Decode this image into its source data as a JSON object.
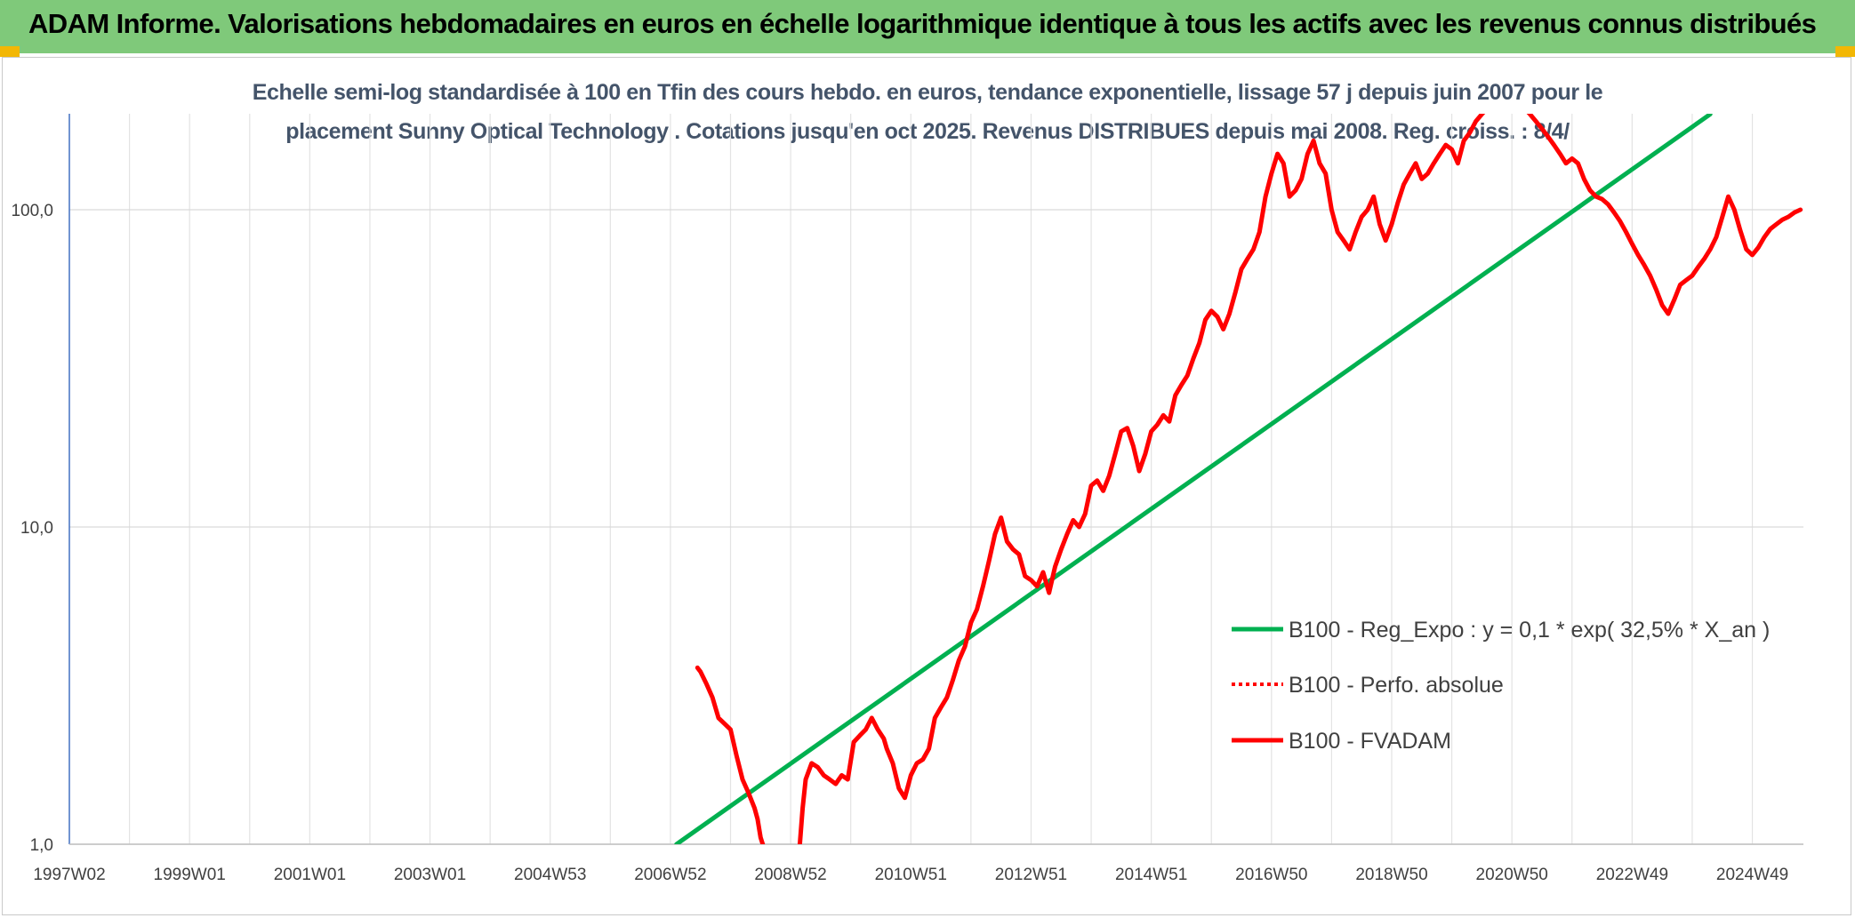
{
  "banner": {
    "title": "ADAM Informe. Valorisations hebdomadaires en euros en échelle logarithmique identique à tous les actifs avec les revenus connus distribués",
    "background": "#7fc97a",
    "corner_color": "#f2b705"
  },
  "chart_data": {
    "type": "line",
    "title_line1": "Echelle semi-log standardisée à 100 en Tfin des cours hebdo. en euros, tendance exponentielle, lissage 57 j depuis juin 2007 pour le",
    "title_line2": "placement Sunny Optical Technology . Cotations jusqu'en oct 2025. Revenus DISTRIBUES depuis mai 2008. Reg. croiss. : 8/4/",
    "y_scale": "log",
    "ylim": [
      1,
      200
    ],
    "xlim": [
      1997.0,
      2025.85
    ],
    "y_ticks": [
      {
        "value": 1,
        "label": "1,0"
      },
      {
        "value": 10,
        "label": "10,0"
      },
      {
        "value": 100,
        "label": "100,0"
      }
    ],
    "x_ticks": [
      {
        "value": 1997.0,
        "label": "1997W02"
      },
      {
        "value": 1999.0,
        "label": "1999W01"
      },
      {
        "value": 2001.0,
        "label": "2001W01"
      },
      {
        "value": 2003.0,
        "label": "2003W01"
      },
      {
        "value": 2005.0,
        "label": "2004W53"
      },
      {
        "value": 2007.0,
        "label": "2006W52"
      },
      {
        "value": 2009.0,
        "label": "2008W52"
      },
      {
        "value": 2011.0,
        "label": "2010W51"
      },
      {
        "value": 2013.0,
        "label": "2012W51"
      },
      {
        "value": 2015.0,
        "label": "2014W51"
      },
      {
        "value": 2017.0,
        "label": "2016W50"
      },
      {
        "value": 2019.0,
        "label": "2018W50"
      },
      {
        "value": 2021.0,
        "label": "2020W50"
      },
      {
        "value": 2023.0,
        "label": "2022W49"
      },
      {
        "value": 2025.0,
        "label": "2024W49"
      }
    ],
    "grid": true,
    "legend_position": "right-lower",
    "series": [
      {
        "name": "B100 - Reg_Expo : y = 0,1 * exp( 32,5% *  X_an )",
        "color": "#00b050",
        "style": "solid",
        "x": [
          2007.1,
          2024.3
        ],
        "y": [
          1.0,
          200
        ]
      },
      {
        "name": "B100 - Perfo. absolue",
        "color": "#ff0000",
        "style": "dotted",
        "x": [],
        "y": []
      },
      {
        "name": "B100 - FVADAM",
        "color": "#ff0000",
        "style": "solid",
        "x": [
          2007.45,
          2007.5,
          2007.6,
          2007.7,
          2007.8,
          2007.9,
          2008.0,
          2008.1,
          2008.2,
          2008.3,
          2008.4,
          2008.45,
          2008.5,
          2008.55,
          2009.15,
          2009.2,
          2009.25,
          2009.35,
          2009.45,
          2009.55,
          2009.65,
          2009.75,
          2009.85,
          2009.95,
          2010.05,
          2010.15,
          2010.25,
          2010.35,
          2010.45,
          2010.55,
          2010.6,
          2010.7,
          2010.8,
          2010.9,
          2011.0,
          2011.1,
          2011.2,
          2011.3,
          2011.4,
          2011.5,
          2011.6,
          2011.7,
          2011.8,
          2011.9,
          2012.0,
          2012.1,
          2012.2,
          2012.3,
          2012.4,
          2012.5,
          2012.6,
          2012.7,
          2012.8,
          2012.9,
          2013.0,
          2013.1,
          2013.2,
          2013.3,
          2013.4,
          2013.5,
          2013.6,
          2013.7,
          2013.8,
          2013.9,
          2014.0,
          2014.1,
          2014.2,
          2014.3,
          2014.4,
          2014.5,
          2014.6,
          2014.7,
          2014.8,
          2014.9,
          2015.0,
          2015.1,
          2015.2,
          2015.3,
          2015.4,
          2015.5,
          2015.6,
          2015.7,
          2015.8,
          2015.9,
          2016.0,
          2016.1,
          2016.2,
          2016.3,
          2016.4,
          2016.5,
          2016.6,
          2016.7,
          2016.8,
          2016.9,
          2017.0,
          2017.1,
          2017.2,
          2017.3,
          2017.4,
          2017.5,
          2017.6,
          2017.7,
          2017.8,
          2017.9,
          2018.0,
          2018.1,
          2018.2,
          2018.3,
          2018.4,
          2018.5,
          2018.6,
          2018.7,
          2018.8,
          2018.9,
          2019.0,
          2019.1,
          2019.2,
          2019.3,
          2019.4,
          2019.5,
          2019.6,
          2019.7,
          2019.8,
          2019.9,
          2020.0,
          2020.1,
          2020.2,
          2020.3,
          2020.4,
          2020.5,
          2020.6,
          2020.7,
          2020.8,
          2020.9,
          2021.0,
          2021.1,
          2021.2,
          2021.3,
          2021.4,
          2021.5,
          2021.6,
          2021.7,
          2021.8,
          2021.9,
          2022.0,
          2022.1,
          2022.2,
          2022.3,
          2022.4,
          2022.5,
          2022.6,
          2022.7,
          2022.8,
          2022.9,
          2023.0,
          2023.1,
          2023.2,
          2023.3,
          2023.4,
          2023.5,
          2023.6,
          2023.7,
          2023.8,
          2023.9,
          2024.0,
          2024.1,
          2024.2,
          2024.3,
          2024.4,
          2024.5,
          2024.6,
          2024.7,
          2024.8,
          2024.9,
          2025.0,
          2025.1,
          2025.2,
          2025.3,
          2025.4,
          2025.5,
          2025.6,
          2025.7,
          2025.8
        ],
        "y": [
          3.6,
          3.5,
          3.2,
          2.9,
          2.5,
          2.4,
          2.3,
          1.9,
          1.6,
          1.45,
          1.3,
          1.2,
          1.05,
          0.98,
          0.98,
          1.3,
          1.6,
          1.8,
          1.75,
          1.65,
          1.6,
          1.55,
          1.65,
          1.6,
          2.1,
          2.2,
          2.3,
          2.5,
          2.3,
          2.15,
          2.0,
          1.8,
          1.5,
          1.4,
          1.65,
          1.8,
          1.85,
          2.0,
          2.5,
          2.7,
          2.9,
          3.3,
          3.8,
          4.2,
          5.0,
          5.5,
          6.5,
          7.8,
          9.5,
          10.7,
          9.0,
          8.5,
          8.2,
          7.0,
          6.8,
          6.5,
          7.2,
          6.2,
          7.5,
          8.5,
          9.5,
          10.5,
          10.0,
          11.0,
          13.5,
          14.0,
          13.0,
          14.5,
          17.0,
          20.0,
          20.5,
          18.0,
          15.0,
          17.0,
          20.0,
          21.0,
          22.5,
          21.5,
          26.0,
          28.0,
          30.0,
          34.0,
          38.0,
          45.0,
          48.0,
          46.0,
          42.0,
          47.0,
          55.0,
          65.0,
          70.0,
          75.0,
          85.0,
          110.0,
          130.0,
          150.0,
          140.0,
          110.0,
          115.0,
          125.0,
          150.0,
          165.0,
          140.0,
          130.0,
          100.0,
          85.0,
          80.0,
          75.0,
          85.0,
          95.0,
          100.0,
          110.0,
          90.0,
          80.0,
          90.0,
          105.0,
          120.0,
          130.0,
          140.0,
          125.0,
          130.0,
          140.0,
          150.0,
          160.0,
          155.0,
          140.0,
          165.0,
          175.0,
          190.0,
          200.0,
          210.0,
          215.0,
          220.0,
          225.0,
          230.0,
          220.0,
          210.0,
          200.0,
          190.0,
          180.0,
          170.0,
          160.0,
          150.0,
          140.0,
          145.0,
          140.0,
          125.0,
          115.0,
          110.0,
          108.0,
          104.0,
          98.0,
          92.0,
          85.0,
          78.0,
          72.0,
          67.0,
          62.0,
          56.0,
          50.0,
          47.0,
          52.0,
          58.0,
          60.0,
          62.0,
          66.0,
          70.0,
          75.0,
          82.0,
          95.0,
          110.0,
          100.0,
          86.0,
          75.0,
          72.0,
          76.0,
          82.0,
          87.0,
          90.0,
          93.0,
          95.0,
          98.0,
          100.0
        ]
      }
    ]
  }
}
